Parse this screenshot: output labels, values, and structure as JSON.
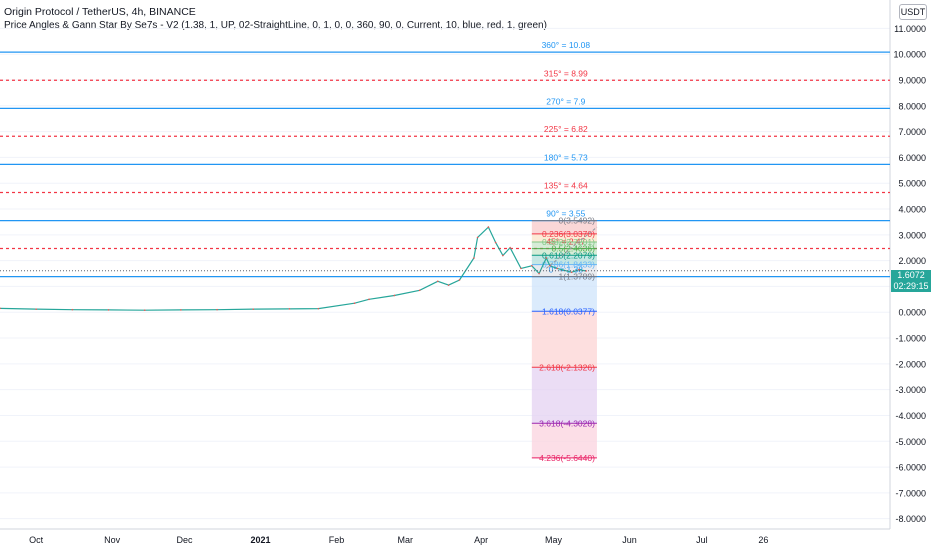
{
  "header": {
    "title": "Origin Protocol / TetherUS, 4h, BINANCE",
    "indicator": "Price Angles & Gann Star By Se7s - V2 (1.38, 1, UP, 02-StraightLine, 0, 1, 0, 0, 360, 90, 0, Current, 10, blue, red, 1, green)",
    "currency_button": "USDT"
  },
  "price_tag": {
    "price": "1.6072",
    "countdown": "02:29:15",
    "color": "#26a69a"
  },
  "colors": {
    "blue": "#2196f3",
    "red": "#f23645",
    "green": "#4caf50",
    "axis_text": "#131722",
    "price_line": "#5d606b"
  },
  "chart_data": {
    "type": "line",
    "y_axis": {
      "ylim": [
        -8.4,
        12.1
      ],
      "ticks": [
        11,
        10,
        9,
        8,
        7,
        6,
        5,
        4,
        3,
        2,
        1,
        0,
        -1,
        -2,
        -3,
        -4,
        -5,
        -6,
        -7,
        -8
      ],
      "tick_labels": [
        "11.0000",
        "10.0000",
        "9.0000",
        "8.0000",
        "7.0000",
        "6.0000",
        "5.0000",
        "4.0000",
        "3.0000",
        "2.0000",
        "1.0000",
        "0.0000",
        "-1.0000",
        "-2.0000",
        "-3.0000",
        "-4.0000",
        "-5.0000",
        "-6.0000",
        "-7.0000",
        "-8.0000"
      ]
    },
    "x_axis": {
      "xlim": [
        0,
        12.3
      ],
      "ticks": [
        {
          "x": 0.5,
          "label": "Oct"
        },
        {
          "x": 1.55,
          "label": "Nov"
        },
        {
          "x": 2.55,
          "label": "Dec"
        },
        {
          "x": 3.6,
          "label": "2021"
        },
        {
          "x": 4.65,
          "label": "Feb"
        },
        {
          "x": 5.6,
          "label": "Mar"
        },
        {
          "x": 6.65,
          "label": "Apr"
        },
        {
          "x": 7.65,
          "label": "May"
        },
        {
          "x": 8.7,
          "label": "Jun"
        },
        {
          "x": 9.7,
          "label": "Jul"
        },
        {
          "x": 10.55,
          "label": "26"
        }
      ]
    },
    "price_series": {
      "name": "",
      "x": [
        0,
        0.5,
        1.0,
        1.5,
        2.0,
        2.5,
        3.0,
        3.5,
        4.0,
        4.4,
        4.9,
        5.1,
        5.45,
        5.8,
        6.05,
        6.2,
        6.35,
        6.55,
        6.6,
        6.75,
        6.85,
        6.95,
        7.05,
        7.2,
        7.35,
        7.45,
        7.55,
        7.6,
        7.7,
        7.9,
        8.0,
        8.1
      ],
      "y": [
        0.15,
        0.12,
        0.1,
        0.09,
        0.08,
        0.09,
        0.1,
        0.12,
        0.13,
        0.14,
        0.35,
        0.5,
        0.65,
        0.85,
        1.2,
        1.05,
        1.25,
        2.1,
        2.9,
        3.3,
        2.7,
        2.2,
        2.5,
        1.7,
        1.8,
        1.5,
        2.1,
        1.8,
        1.7,
        1.55,
        1.65,
        1.6
      ]
    },
    "gann_levels": [
      {
        "angle": "360°",
        "label": "360° = 10.08",
        "value": 10.08,
        "style": "solid",
        "color": "#2196f3"
      },
      {
        "angle": "315°",
        "label": "315° = 8.99",
        "value": 8.99,
        "style": "dashed",
        "color": "#f23645"
      },
      {
        "angle": "270°",
        "label": "270° = 7.9",
        "value": 7.9,
        "style": "solid",
        "color": "#2196f3"
      },
      {
        "angle": "225°",
        "label": "225° = 6.82",
        "value": 6.82,
        "style": "dashed",
        "color": "#f23645"
      },
      {
        "angle": "180°",
        "label": "180° = 5.73",
        "value": 5.73,
        "style": "solid",
        "color": "#2196f3"
      },
      {
        "angle": "135°",
        "label": "135° = 4.64",
        "value": 4.64,
        "style": "dashed",
        "color": "#f23645"
      },
      {
        "angle": "90°",
        "label": "90° = 3.55",
        "value": 3.55,
        "style": "solid",
        "color": "#2196f3"
      },
      {
        "angle": "45°",
        "label": "45° = 2.47",
        "value": 2.47,
        "style": "dashed",
        "color": "#f23645"
      },
      {
        "angle": "0°",
        "label": "0° = 1.38",
        "value": 1.38,
        "style": "solid",
        "color": "#2196f3"
      }
    ],
    "fib_levels": [
      {
        "label": "0(3.5492)",
        "value": 3.5492,
        "color": "#787b86"
      },
      {
        "label": "0.236(3.0370)",
        "value": 3.037,
        "color": "#f23645"
      },
      {
        "label": "0.382(2.7201)",
        "value": 2.7201,
        "color": "#81c784"
      },
      {
        "label": "0.5(2.4636)",
        "value": 2.4636,
        "color": "#4caf50"
      },
      {
        "label": "0.618(2.2079)",
        "value": 2.2079,
        "color": "#089981"
      },
      {
        "label": "0.786(1.8433)",
        "value": 1.8433,
        "color": "#64b5f6"
      },
      {
        "label": "1(1.3789)",
        "value": 1.3789,
        "color": "#787b86"
      },
      {
        "label": "1.618(0.0377)",
        "value": 0.0377,
        "color": "#2962ff"
      },
      {
        "label": "2.618(-2.1326)",
        "value": -2.1326,
        "color": "#f23645"
      },
      {
        "label": "3.618(-4.3028)",
        "value": -4.3028,
        "color": "#9c27b0"
      },
      {
        "label": "4.236(-5.6440)",
        "value": -5.644,
        "color": "#e91e63"
      }
    ],
    "fib_fills": [
      "#f8c9c9",
      "#fbe3c8",
      "#c8e6c9",
      "#c8e6c9",
      "#b2dfdb",
      "#e1e4ea",
      "#cfe4fb",
      "#fcd4d4",
      "#e4d2f1",
      "#fbd3df"
    ],
    "fib_x_range": [
      7.35,
      8.25
    ],
    "trend_line": {
      "x": [
        7.55,
        8.25
      ],
      "y": [
        1.7,
        3.3
      ]
    },
    "current_price": 1.6072
  }
}
